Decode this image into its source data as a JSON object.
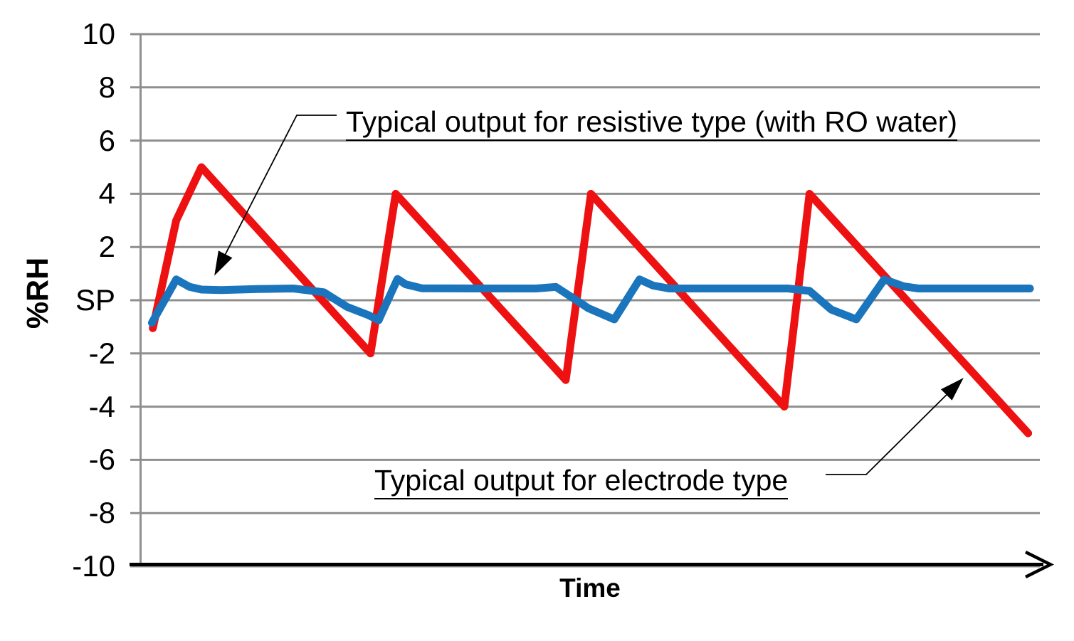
{
  "chart_data": {
    "type": "line",
    "title": "",
    "xlabel": "Time",
    "ylabel": "%RH",
    "xlim": [
      0,
      100
    ],
    "ylim": [
      -10,
      10
    ],
    "grid": "horizontal",
    "legend_position": "none",
    "x_axis_arrow": true,
    "colors": {
      "grid": "#8f8f8f",
      "axis": "#000000",
      "electrode_red": "#ee1111",
      "resistive_blue": "#1b75bc"
    },
    "y_ticks": [
      {
        "value": 10,
        "label": "10"
      },
      {
        "value": 8,
        "label": "8"
      },
      {
        "value": 6,
        "label": "6"
      },
      {
        "value": 4,
        "label": "4"
      },
      {
        "value": 2,
        "label": "2"
      },
      {
        "value": 0,
        "label": "SP"
      },
      {
        "value": -2,
        "label": "-2"
      },
      {
        "value": -4,
        "label": "-4"
      },
      {
        "value": -6,
        "label": "-6"
      },
      {
        "value": -8,
        "label": "-8"
      },
      {
        "value": -10,
        "label": "-10"
      }
    ],
    "series": [
      {
        "id": "electrode",
        "name": "Typical output for electrode type",
        "color": "#ee1111",
        "width": 11,
        "points": [
          [
            1.4,
            -1.05
          ],
          [
            4.0,
            3.0
          ],
          [
            6.8,
            5.0
          ],
          [
            25.6,
            -2.0
          ],
          [
            28.4,
            4.0
          ],
          [
            47.3,
            -3.0
          ],
          [
            50.1,
            4.0
          ],
          [
            71.6,
            -4.0
          ],
          [
            74.4,
            4.0
          ],
          [
            98.7,
            -5.0
          ]
        ]
      },
      {
        "id": "resistive",
        "name": "Typical output for resistive type (with RO water)",
        "color": "#1b75bc",
        "width": 11,
        "points": [
          [
            1.3,
            -0.85
          ],
          [
            4.0,
            0.78
          ],
          [
            5.5,
            0.5
          ],
          [
            6.8,
            0.4
          ],
          [
            9.0,
            0.38
          ],
          [
            13.0,
            0.42
          ],
          [
            17.0,
            0.44
          ],
          [
            20.4,
            0.3
          ],
          [
            23.0,
            -0.25
          ],
          [
            25.3,
            -0.55
          ],
          [
            26.5,
            -0.75
          ],
          [
            28.6,
            0.8
          ],
          [
            29.5,
            0.6
          ],
          [
            31.3,
            0.45
          ],
          [
            38.0,
            0.44
          ],
          [
            44.0,
            0.44
          ],
          [
            46.2,
            0.5
          ],
          [
            48.7,
            -0.05
          ],
          [
            49.8,
            -0.3
          ],
          [
            52.7,
            -0.72
          ],
          [
            55.5,
            0.78
          ],
          [
            57.0,
            0.55
          ],
          [
            58.8,
            0.44
          ],
          [
            65.0,
            0.44
          ],
          [
            72.0,
            0.44
          ],
          [
            74.4,
            0.35
          ],
          [
            76.8,
            -0.35
          ],
          [
            79.6,
            -0.72
          ],
          [
            82.7,
            0.78
          ],
          [
            84.9,
            0.52
          ],
          [
            86.5,
            0.44
          ],
          [
            93.0,
            0.44
          ],
          [
            98.9,
            0.44
          ]
        ]
      }
    ],
    "annotations": [
      {
        "text": "Typical output for resistive type (with RO water)",
        "underline": true,
        "points_to": "resistive"
      },
      {
        "text": "Typical output for electrode type",
        "underline": true,
        "points_to": "electrode"
      }
    ]
  }
}
